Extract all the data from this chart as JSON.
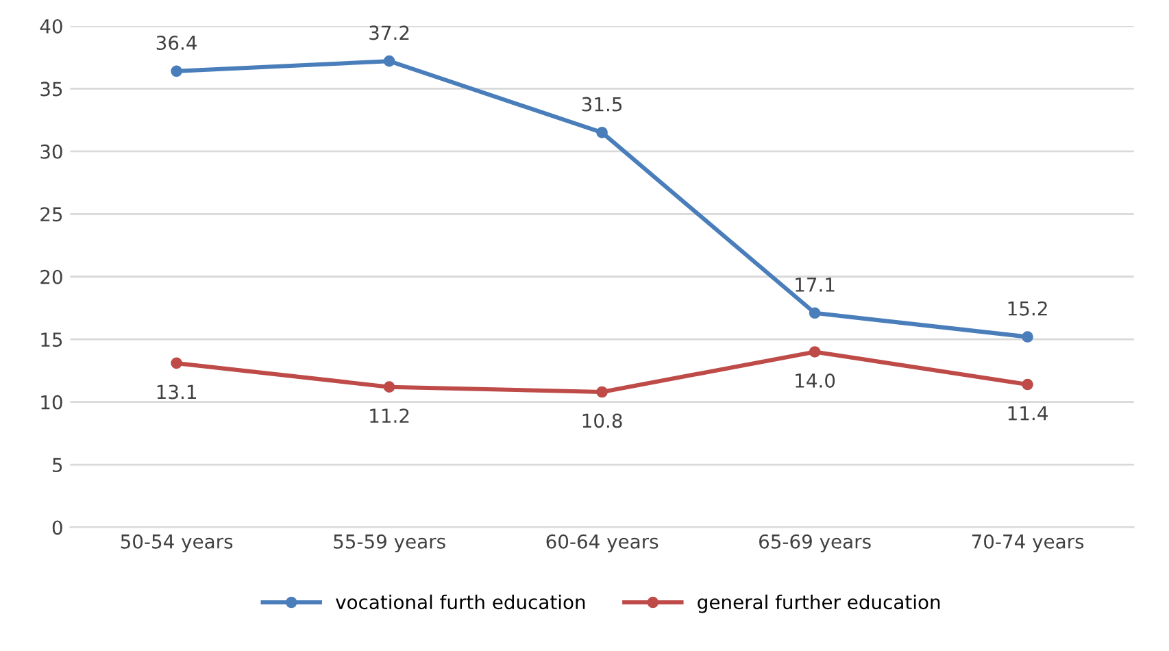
{
  "chart_data": {
    "type": "line",
    "categories": [
      "50-54 years",
      "55-59 years",
      "60-64 years",
      "65-69 years",
      "70-74 years"
    ],
    "series": [
      {
        "name": "vocational furth education",
        "color": "#4a7ebb",
        "values": [
          36.4,
          37.2,
          31.5,
          17.1,
          15.2
        ],
        "value_labels": [
          "36.4",
          "37.2",
          "31.5",
          "17.1",
          "15.2"
        ]
      },
      {
        "name": "general further education",
        "color": "#be4b48",
        "values": [
          13.1,
          11.2,
          10.8,
          14.0,
          11.4
        ],
        "value_labels": [
          "13.1",
          "11.2",
          "10.8",
          "14.0",
          "11.4"
        ]
      }
    ],
    "ylim": [
      0,
      40
    ],
    "yticks": [
      0,
      5,
      10,
      15,
      20,
      25,
      30,
      35,
      40
    ],
    "grid": "y",
    "legend": "bottom",
    "marker": "circle",
    "line_style": "solid"
  }
}
